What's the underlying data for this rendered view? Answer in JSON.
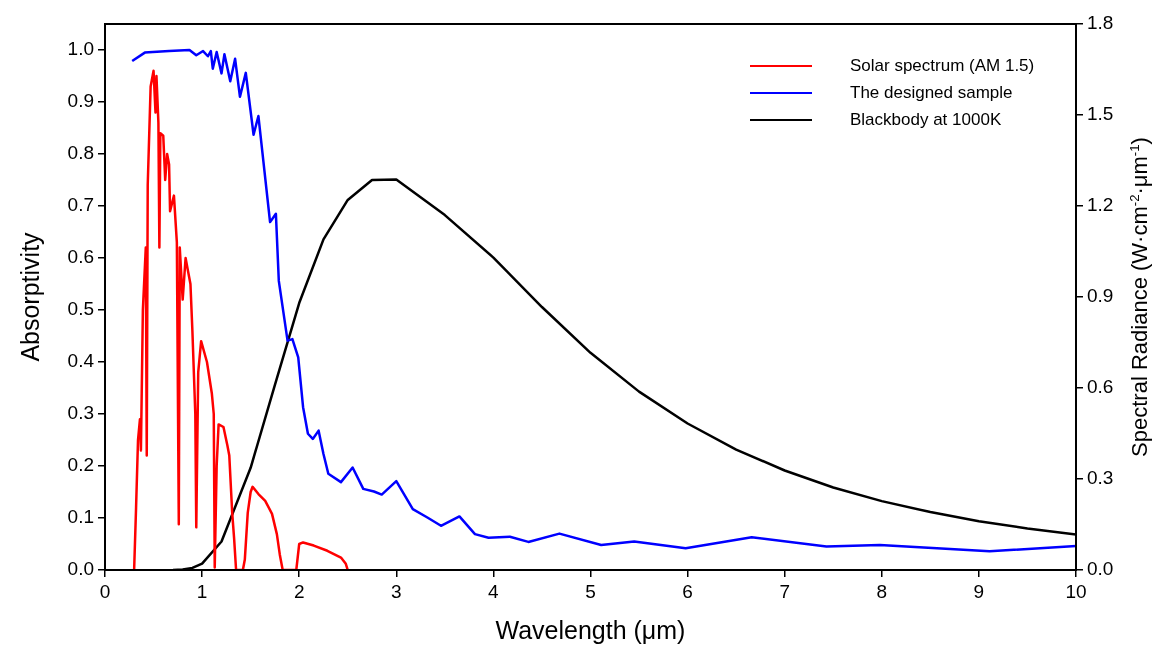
{
  "chart_data": {
    "type": "line",
    "xlabel": "Wavelength (μm)",
    "ylabel": "Absorptivity",
    "y2label": "Spectral Radiance (W·cm$^{-2}$·μm$^{-1}$)",
    "xlim": [
      0,
      10
    ],
    "xticks": [
      0,
      1,
      2,
      3,
      4,
      5,
      6,
      7,
      8,
      9,
      10
    ],
    "ylim": [
      0,
      1.05
    ],
    "yticks": [
      {
        "value": 0,
        "label": "0.0"
      },
      0.1,
      0.2,
      0.3,
      0.4,
      0.5,
      0.6,
      0.7,
      0.8,
      0.9,
      {
        "value": 1,
        "label": "1.0"
      }
    ],
    "y2lim": [
      0,
      1.8
    ],
    "y2ticks": [
      {
        "value": 0,
        "label": "0.0"
      },
      0.3,
      0.6,
      0.9,
      1.2,
      1.5,
      1.8
    ],
    "grid": false,
    "legend": "top right",
    "line_style": "solid",
    "marker": "none",
    "series": [
      {
        "name": "Solar spectrum (AM 1.5)",
        "color": "#ff0000",
        "x": [
          0.3,
          0.32,
          0.34,
          0.36,
          0.37,
          0.39,
          0.42,
          0.43,
          0.44,
          0.47,
          0.5,
          0.52,
          0.53,
          0.55,
          0.56,
          0.57,
          0.6,
          0.62,
          0.64,
          0.66,
          0.67,
          0.71,
          0.74,
          0.76,
          0.77,
          0.8,
          0.83,
          0.85,
          0.88,
          0.9,
          0.93,
          0.94,
          0.96,
          0.99,
          1.05,
          1.1,
          1.12,
          1.13,
          1.15,
          1.17,
          1.22,
          1.26,
          1.28,
          1.31,
          1.33,
          1.35,
          1.42,
          1.44,
          1.47,
          1.5,
          1.52,
          1.58,
          1.65,
          1.72,
          1.77,
          1.8,
          1.83,
          1.97,
          2.0,
          2.04,
          2.15,
          2.29,
          2.43,
          2.48,
          2.5
        ],
        "values": [
          0,
          0.12,
          0.25,
          0.29,
          0.23,
          0.5,
          0.62,
          0.22,
          0.74,
          0.93,
          0.96,
          0.88,
          0.95,
          0.86,
          0.62,
          0.84,
          0.835,
          0.75,
          0.8,
          0.78,
          0.69,
          0.72,
          0.63,
          0.088,
          0.62,
          0.52,
          0.6,
          0.58,
          0.55,
          0.46,
          0.3,
          0.082,
          0.38,
          0.44,
          0.4,
          0.34,
          0.3,
          0.005,
          0.2,
          0.28,
          0.275,
          0.24,
          0.22,
          0.11,
          0.06,
          0,
          0,
          0.02,
          0.11,
          0.15,
          0.16,
          0.146,
          0.133,
          0.108,
          0.069,
          0.03,
          0,
          0,
          0.05,
          0.053,
          0.047,
          0.037,
          0.024,
          0.012,
          0
        ]
      },
      {
        "name": "The designed sample",
        "color": "#0000ff",
        "x": [
          0.28,
          0.41,
          0.66,
          0.87,
          0.94,
          1.01,
          1.06,
          1.09,
          1.11,
          1.15,
          1.2,
          1.23,
          1.29,
          1.34,
          1.39,
          1.45,
          1.53,
          1.58,
          1.7,
          1.76,
          1.79,
          1.88,
          1.93,
          1.99,
          2.04,
          2.09,
          2.14,
          2.2,
          2.25,
          2.3,
          2.43,
          2.55,
          2.66,
          2.77,
          2.85,
          3.0,
          3.17,
          3.32,
          3.46,
          3.65,
          3.81,
          3.95,
          4.17,
          4.36,
          4.68,
          5.11,
          5.45,
          5.98,
          6.66,
          7.43,
          7.98,
          9.11,
          10
        ],
        "values": [
          0.979,
          0.995,
          0.998,
          1.0,
          0.99,
          0.998,
          0.988,
          0.998,
          0.964,
          0.996,
          0.955,
          0.992,
          0.94,
          0.983,
          0.91,
          0.956,
          0.837,
          0.873,
          0.669,
          0.685,
          0.556,
          0.441,
          0.444,
          0.409,
          0.313,
          0.262,
          0.252,
          0.268,
          0.223,
          0.185,
          0.169,
          0.197,
          0.156,
          0.151,
          0.145,
          0.171,
          0.117,
          0.101,
          0.085,
          0.103,
          0.069,
          0.062,
          0.064,
          0.054,
          0.07,
          0.048,
          0.055,
          0.042,
          0.063,
          0.045,
          0.048,
          0.036,
          0.046
        ]
      },
      {
        "name": "Blackbody at 1000K",
        "color": "#000000",
        "axis": "y2",
        "x": [
          0.7,
          0.8,
          0.9,
          1.0,
          1.2,
          1.5,
          1.75,
          2.0,
          2.25,
          2.5,
          2.75,
          3.0,
          3.5,
          4.0,
          4.5,
          5.0,
          5.5,
          6.0,
          6.5,
          7.0,
          7.5,
          8.0,
          8.5,
          9.0,
          9.5,
          10
        ],
        "values": [
          0,
          0.002,
          0.007,
          0.021,
          0.094,
          0.337,
          0.61,
          0.88,
          1.09,
          1.22,
          1.286,
          1.287,
          1.17,
          1.03,
          0.867,
          0.716,
          0.588,
          0.483,
          0.397,
          0.328,
          0.272,
          0.227,
          0.191,
          0.161,
          0.137,
          0.117
        ]
      }
    ]
  }
}
